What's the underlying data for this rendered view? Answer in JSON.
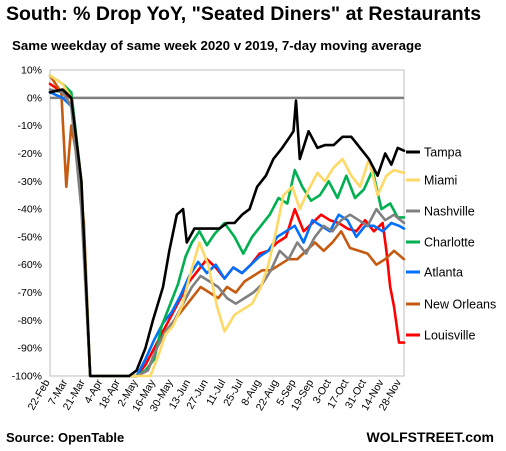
{
  "title": "South: % Drop YoY, \"Seated Diners\" at Restaurants",
  "subtitle": "Same weekday of same week 2020 v 2019, 7-day moving average",
  "source": "Source: OpenTable",
  "brand": "WOLFSTREET.com",
  "chart_data": {
    "type": "line",
    "ylim": [
      -100,
      10
    ],
    "xlim": [
      "2020-02-22",
      "2020-11-30"
    ],
    "grid": false,
    "y_ticks": [
      10,
      0,
      -10,
      -20,
      -30,
      -40,
      -50,
      -60,
      -70,
      -80,
      -90,
      -100
    ],
    "y_tick_labels": [
      "10%",
      "0%",
      "-10%",
      "-20%",
      "-30%",
      "-40%",
      "-50%",
      "-60%",
      "-70%",
      "-80%",
      "-90%",
      "-100%"
    ],
    "x_ticks": [
      "2020-02-22",
      "2020-03-07",
      "2020-03-21",
      "2020-04-04",
      "2020-04-18",
      "2020-05-02",
      "2020-05-16",
      "2020-05-30",
      "2020-06-13",
      "2020-06-27",
      "2020-07-11",
      "2020-07-25",
      "2020-08-08",
      "2020-08-22",
      "2020-09-05",
      "2020-09-19",
      "2020-10-03",
      "2020-10-17",
      "2020-10-31",
      "2020-11-14",
      "2020-11-28"
    ],
    "x_tick_labels": [
      "22-Feb",
      "7-Mar",
      "21-Mar",
      "4-Apr",
      "18-Apr",
      "2-May",
      "16-May",
      "30-May",
      "13-Jun",
      "27-Jun",
      "11-Jul",
      "25-Jul",
      "8-Aug",
      "22-Aug",
      "5-Sep",
      "19-Sep",
      "3-Oct",
      "17-Oct",
      "31-Oct",
      "14-Nov",
      "28-Nov"
    ],
    "zero_line_color": "#808080",
    "legend_placement": "right (labels at line ends)",
    "series": [
      {
        "name": "Tampa",
        "color": "#000000",
        "x": [
          "2020-02-22",
          "2020-03-03",
          "2020-03-10",
          "2020-03-18",
          "2020-03-25",
          "2020-04-05",
          "2020-04-25",
          "2020-05-01",
          "2020-05-08",
          "2020-05-14",
          "2020-05-22",
          "2020-05-27",
          "2020-06-02",
          "2020-06-07",
          "2020-06-10",
          "2020-06-16",
          "2020-06-22",
          "2020-06-28",
          "2020-07-06",
          "2020-07-12",
          "2020-07-18",
          "2020-07-24",
          "2020-07-30",
          "2020-08-05",
          "2020-08-12",
          "2020-08-18",
          "2020-08-25",
          "2020-08-31",
          "2020-09-03",
          "2020-09-05",
          "2020-09-08",
          "2020-09-15",
          "2020-09-22",
          "2020-09-28",
          "2020-10-05",
          "2020-10-12",
          "2020-10-19",
          "2020-10-26",
          "2020-11-02",
          "2020-11-09",
          "2020-11-15",
          "2020-11-20",
          "2020-11-25",
          "2020-11-30"
        ],
        "y": [
          2,
          3,
          0,
          -30,
          -100,
          -100,
          -100,
          -98,
          -90,
          -80,
          -68,
          -55,
          -42,
          -40,
          -52,
          -47,
          -47,
          -47,
          -47,
          -45,
          -45,
          -42,
          -40,
          -32,
          -28,
          -22,
          -18,
          -14,
          -12,
          -1,
          -22,
          -12,
          -18,
          -17,
          -17,
          -14,
          -14,
          -18,
          -22,
          -28,
          -20,
          -24,
          -18,
          -19
        ]
      },
      {
        "name": "Miami",
        "color": "#FFD966",
        "x": [
          "2020-02-22",
          "2020-03-03",
          "2020-03-10",
          "2020-03-18",
          "2020-03-25",
          "2020-04-05",
          "2020-05-01",
          "2020-05-12",
          "2020-05-18",
          "2020-05-24",
          "2020-05-30",
          "2020-06-06",
          "2020-06-13",
          "2020-06-20",
          "2020-06-27",
          "2020-07-04",
          "2020-07-10",
          "2020-07-18",
          "2020-07-25",
          "2020-08-01",
          "2020-08-08",
          "2020-08-14",
          "2020-08-20",
          "2020-08-26",
          "2020-09-02",
          "2020-09-08",
          "2020-09-15",
          "2020-09-22",
          "2020-09-28",
          "2020-10-05",
          "2020-10-12",
          "2020-10-19",
          "2020-10-26",
          "2020-11-02",
          "2020-11-09",
          "2020-11-16",
          "2020-11-22",
          "2020-11-30"
        ],
        "y": [
          8,
          5,
          0,
          -30,
          -100,
          -100,
          -100,
          -100,
          -93,
          -85,
          -82,
          -75,
          -63,
          -52,
          -60,
          -75,
          -84,
          -78,
          -76,
          -74,
          -68,
          -60,
          -48,
          -35,
          -32,
          -40,
          -33,
          -27,
          -30,
          -25,
          -22,
          -28,
          -32,
          -22,
          -35,
          -28,
          -26,
          -27
        ]
      },
      {
        "name": "Nashville",
        "color": "#808080",
        "x": [
          "2020-02-22",
          "2020-03-03",
          "2020-03-10",
          "2020-03-18",
          "2020-03-25",
          "2020-04-05",
          "2020-05-01",
          "2020-05-10",
          "2020-05-17",
          "2020-05-24",
          "2020-05-31",
          "2020-06-07",
          "2020-06-14",
          "2020-06-21",
          "2020-06-28",
          "2020-07-05",
          "2020-07-12",
          "2020-07-19",
          "2020-07-26",
          "2020-08-02",
          "2020-08-09",
          "2020-08-16",
          "2020-08-23",
          "2020-08-30",
          "2020-09-06",
          "2020-09-13",
          "2020-09-20",
          "2020-09-27",
          "2020-10-04",
          "2020-10-11",
          "2020-10-18",
          "2020-10-25",
          "2020-11-01",
          "2020-11-08",
          "2020-11-15",
          "2020-11-22",
          "2020-11-30"
        ],
        "y": [
          3,
          2,
          -3,
          -40,
          -100,
          -100,
          -100,
          -98,
          -90,
          -84,
          -80,
          -74,
          -68,
          -64,
          -66,
          -68,
          -72,
          -74,
          -72,
          -70,
          -67,
          -62,
          -55,
          -58,
          -52,
          -56,
          -50,
          -46,
          -48,
          -44,
          -42,
          -44,
          -46,
          -40,
          -44,
          -42,
          -45
        ]
      },
      {
        "name": "Charlotte",
        "color": "#00B050",
        "x": [
          "2020-02-22",
          "2020-03-03",
          "2020-03-10",
          "2020-03-18",
          "2020-03-25",
          "2020-04-05",
          "2020-05-01",
          "2020-05-08",
          "2020-05-15",
          "2020-05-21",
          "2020-05-27",
          "2020-06-03",
          "2020-06-09",
          "2020-06-14",
          "2020-06-20",
          "2020-06-26",
          "2020-07-02",
          "2020-07-10",
          "2020-07-18",
          "2020-07-25",
          "2020-08-01",
          "2020-08-08",
          "2020-08-15",
          "2020-08-22",
          "2020-08-29",
          "2020-09-04",
          "2020-09-10",
          "2020-09-17",
          "2020-09-24",
          "2020-10-01",
          "2020-10-08",
          "2020-10-15",
          "2020-10-22",
          "2020-10-29",
          "2020-11-05",
          "2020-11-12",
          "2020-11-19",
          "2020-11-25",
          "2020-11-30"
        ],
        "y": [
          8,
          5,
          2,
          -30,
          -100,
          -100,
          -100,
          -98,
          -94,
          -82,
          -75,
          -67,
          -57,
          -52,
          -48,
          -53,
          -49,
          -45,
          -50,
          -56,
          -50,
          -46,
          -42,
          -36,
          -38,
          -26,
          -32,
          -37,
          -35,
          -30,
          -36,
          -28,
          -36,
          -33,
          -26,
          -40,
          -38,
          -43,
          -43
        ]
      },
      {
        "name": "Atlanta",
        "color": "#0070FF",
        "x": [
          "2020-02-22",
          "2020-03-03",
          "2020-03-10",
          "2020-03-18",
          "2020-03-25",
          "2020-04-05",
          "2020-05-01",
          "2020-05-08",
          "2020-05-15",
          "2020-05-22",
          "2020-05-29",
          "2020-06-05",
          "2020-06-12",
          "2020-06-19",
          "2020-06-26",
          "2020-07-03",
          "2020-07-10",
          "2020-07-17",
          "2020-07-24",
          "2020-07-31",
          "2020-08-07",
          "2020-08-14",
          "2020-08-21",
          "2020-08-28",
          "2020-09-04",
          "2020-09-11",
          "2020-09-18",
          "2020-09-25",
          "2020-10-02",
          "2020-10-09",
          "2020-10-16",
          "2020-10-23",
          "2020-10-30",
          "2020-11-06",
          "2020-11-13",
          "2020-11-20",
          "2020-11-26",
          "2020-11-30"
        ],
        "y": [
          2,
          0,
          -3,
          -35,
          -100,
          -100,
          -100,
          -94,
          -87,
          -81,
          -77,
          -71,
          -64,
          -59,
          -63,
          -60,
          -65,
          -61,
          -63,
          -60,
          -57,
          -55,
          -50,
          -48,
          -46,
          -52,
          -44,
          -46,
          -48,
          -42,
          -44,
          -50,
          -46,
          -46,
          -48,
          -45,
          -46,
          -47
        ]
      },
      {
        "name": "New Orleans",
        "color": "#C55A11",
        "x": [
          "2020-02-22",
          "2020-03-02",
          "2020-03-06",
          "2020-03-10",
          "2020-03-14",
          "2020-03-20",
          "2020-03-25",
          "2020-04-05",
          "2020-05-01",
          "2020-05-10",
          "2020-05-17",
          "2020-05-24",
          "2020-05-31",
          "2020-06-07",
          "2020-06-14",
          "2020-06-21",
          "2020-06-28",
          "2020-07-05",
          "2020-07-12",
          "2020-07-19",
          "2020-07-26",
          "2020-08-02",
          "2020-08-09",
          "2020-08-16",
          "2020-08-23",
          "2020-08-30",
          "2020-09-06",
          "2020-09-13",
          "2020-09-20",
          "2020-09-27",
          "2020-10-04",
          "2020-10-11",
          "2020-10-18",
          "2020-10-25",
          "2020-11-01",
          "2020-11-08",
          "2020-11-15",
          "2020-11-22",
          "2020-11-30"
        ],
        "y": [
          8,
          2,
          -32,
          -10,
          -20,
          -45,
          -100,
          -100,
          -100,
          -98,
          -90,
          -84,
          -80,
          -76,
          -72,
          -68,
          -70,
          -72,
          -68,
          -70,
          -66,
          -64,
          -62,
          -62,
          -60,
          -58,
          -58,
          -55,
          -52,
          -55,
          -52,
          -48,
          -54,
          -55,
          -56,
          -60,
          -58,
          -55,
          -58
        ]
      },
      {
        "name": "Louisville",
        "color": "#FF0000",
        "x": [
          "2020-02-22",
          "2020-03-03",
          "2020-03-10",
          "2020-03-18",
          "2020-03-25",
          "2020-04-05",
          "2020-05-01",
          "2020-05-08",
          "2020-05-15",
          "2020-05-22",
          "2020-05-29",
          "2020-06-05",
          "2020-06-12",
          "2020-06-19",
          "2020-06-26",
          "2020-07-03",
          "2020-07-10",
          "2020-07-17",
          "2020-07-24",
          "2020-07-31",
          "2020-08-07",
          "2020-08-14",
          "2020-08-21",
          "2020-08-28",
          "2020-09-04",
          "2020-09-11",
          "2020-09-18",
          "2020-09-25",
          "2020-10-02",
          "2020-10-09",
          "2020-10-16",
          "2020-10-23",
          "2020-10-30",
          "2020-11-06",
          "2020-11-13",
          "2020-11-16",
          "2020-11-19",
          "2020-11-22",
          "2020-11-26",
          "2020-11-30"
        ],
        "y": [
          5,
          2,
          0,
          -35,
          -100,
          -100,
          -100,
          -96,
          -90,
          -84,
          -78,
          -72,
          -66,
          -62,
          -58,
          -61,
          -65,
          -61,
          -63,
          -60,
          -56,
          -55,
          -52,
          -50,
          -40,
          -48,
          -45,
          -42,
          -44,
          -45,
          -47,
          -48,
          -44,
          -48,
          -45,
          -55,
          -68,
          -75,
          -88,
          -88
        ]
      }
    ]
  }
}
